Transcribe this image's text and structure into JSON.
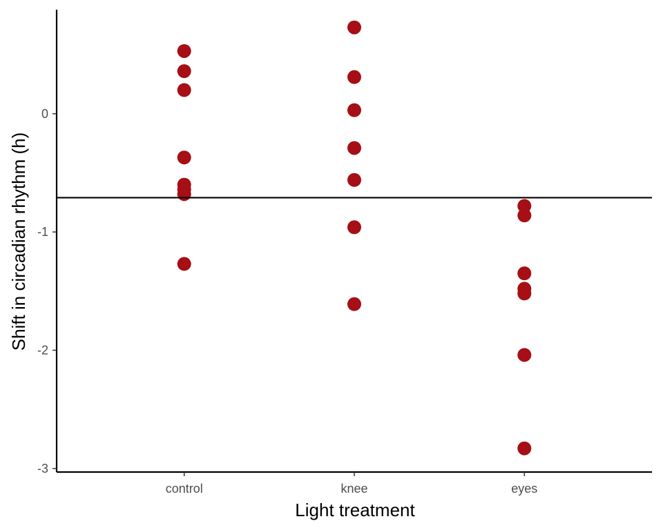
{
  "chart_data": {
    "type": "scatter",
    "title": "",
    "xlabel": "Light treatment",
    "ylabel": "Shift in circadian rhythm (h)",
    "categories": [
      "control",
      "knee",
      "eyes"
    ],
    "yticks": [
      -3,
      -2,
      -1,
      0
    ],
    "ytick_labels": [
      "-3",
      "-2",
      "-1",
      "0"
    ],
    "ylim": [
      -3.03,
      0.88
    ],
    "grid": false,
    "legend": "none",
    "reference_line": -0.71,
    "point_color": "#A50F15",
    "points": [
      {
        "category": "control",
        "values": [
          0.53,
          0.36,
          0.2,
          -0.37,
          -0.6,
          -0.64,
          -0.68,
          -1.27
        ]
      },
      {
        "category": "knee",
        "values": [
          0.73,
          0.31,
          0.03,
          -0.29,
          -0.56,
          -0.96,
          -1.61
        ]
      },
      {
        "category": "eyes",
        "values": [
          -0.78,
          -0.86,
          -1.35,
          -1.48,
          -1.52,
          -2.04,
          -2.83
        ]
      }
    ]
  }
}
